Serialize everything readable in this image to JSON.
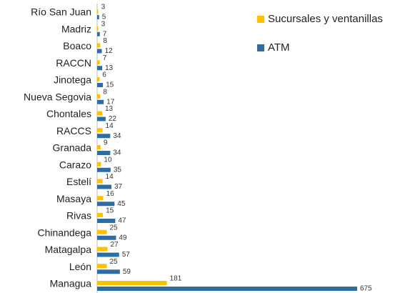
{
  "chart_data": {
    "type": "bar",
    "orientation": "horizontal",
    "categories": [
      "Río San Juan",
      "Madriz",
      "Boaco",
      "RACCN",
      "Jinotega",
      "Nueva Segovia",
      "Chontales",
      "RACCS",
      "Granada",
      "Carazo",
      "Estelí",
      "Masaya",
      "Rivas",
      "Chinandega",
      "Matagalpa",
      "León",
      "Managua"
    ],
    "series": [
      {
        "name": "Sucursales y ventanillas",
        "color": "#ffc000",
        "values": [
          3,
          3,
          8,
          7,
          6,
          8,
          13,
          14,
          9,
          10,
          14,
          16,
          15,
          25,
          27,
          25,
          181
        ]
      },
      {
        "name": "ATM",
        "color": "#2e6ca4",
        "values": [
          5,
          7,
          12,
          13,
          15,
          17,
          22,
          34,
          34,
          35,
          37,
          45,
          47,
          49,
          57,
          59,
          675
        ]
      }
    ],
    "legend": "top-right"
  }
}
